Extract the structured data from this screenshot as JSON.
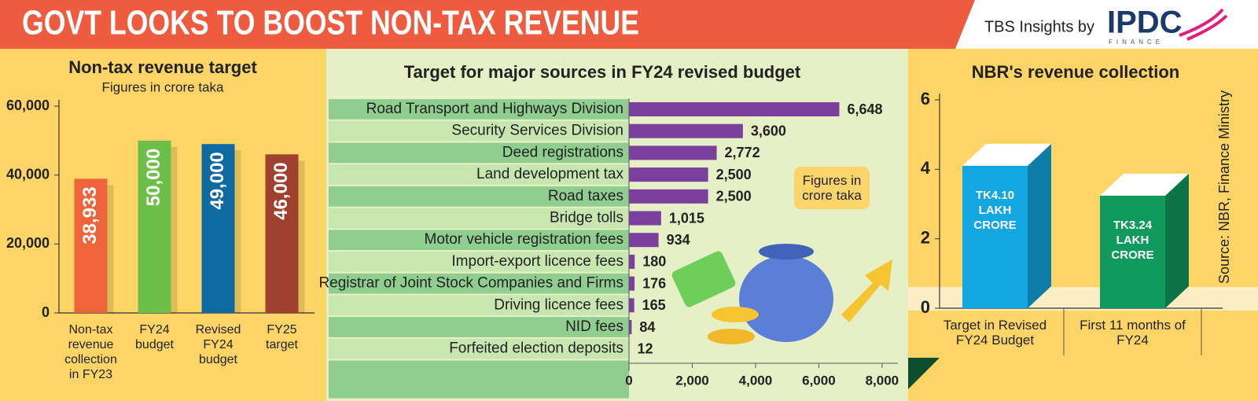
{
  "header": {
    "title": "GOVT LOOKS TO BOOST NON-TAX REVENUE",
    "brand": "TBS Insights by",
    "logo": "IPDC",
    "logo_sub": "FINANCE"
  },
  "source": "Source: NBR, Finance Ministry",
  "chart_data": [
    {
      "type": "bar",
      "orientation": "vertical",
      "title": "Non-tax revenue target",
      "subtitle": "Figures in crore taka",
      "categories": [
        "Non-tax revenue collection in FY23",
        "FY24 budget",
        "Revised FY24 budget",
        "FY25 target"
      ],
      "values": [
        38933,
        50000,
        49000,
        46000
      ],
      "value_labels": [
        "38,933",
        "50,000",
        "49,000",
        "46,000"
      ],
      "colors": [
        "#f0643c",
        "#6cc04a",
        "#0e6aa0",
        "#a0402e"
      ],
      "ylim": [
        0,
        60000
      ],
      "yticks": [
        0,
        {
          "value": 20000,
          "label": "20,000"
        },
        {
          "value": 40000,
          "label": "40,000"
        },
        {
          "value": 60000,
          "label": "60,000"
        }
      ]
    },
    {
      "type": "bar",
      "orientation": "horizontal",
      "title": "Target for major sources in FY24 revised budget",
      "annotation": "Figures in crore taka",
      "categories": [
        "Road Transport and Highways Division",
        "Security Services Division",
        "Deed registrations",
        "Land development tax",
        "Road taxes",
        "Bridge tolls",
        "Motor vehicle registration fees",
        "Import-export licence fees",
        "Registrar of Joint Stock Companies and Firms",
        "Driving licence fees",
        "NID fees",
        "Forfeited election deposits"
      ],
      "values": [
        6648,
        3600,
        2772,
        2500,
        2500,
        1015,
        934,
        180,
        176,
        165,
        84,
        12
      ],
      "value_labels": [
        "6,648",
        "3,600",
        "2,772",
        "2,500",
        "2,500",
        "1,015",
        "934",
        "180",
        "176",
        "165",
        "84",
        "12"
      ],
      "color": "#7b3f9e",
      "xlim": [
        0,
        8500
      ],
      "xticks": [
        0,
        {
          "value": 2000,
          "label": "2,000"
        },
        {
          "value": 4000,
          "label": "4,000"
        },
        {
          "value": 6000,
          "label": "6,000"
        },
        {
          "value": 8000,
          "label": "8,000"
        }
      ]
    },
    {
      "type": "bar",
      "orientation": "vertical",
      "title": "NBR's revenue collection",
      "categories": [
        "Target in Revised FY24 Budget",
        "First 11 months of FY24"
      ],
      "values": [
        4.1,
        3.24
      ],
      "value_labels": [
        "TK4.10 LAKH CRORE",
        "TK3.24 LAKH CRORE"
      ],
      "colors": [
        "#13a6e0",
        "#109a5e"
      ],
      "ylim": [
        0,
        6
      ],
      "yticks": [
        0,
        2,
        4,
        6
      ]
    }
  ]
}
